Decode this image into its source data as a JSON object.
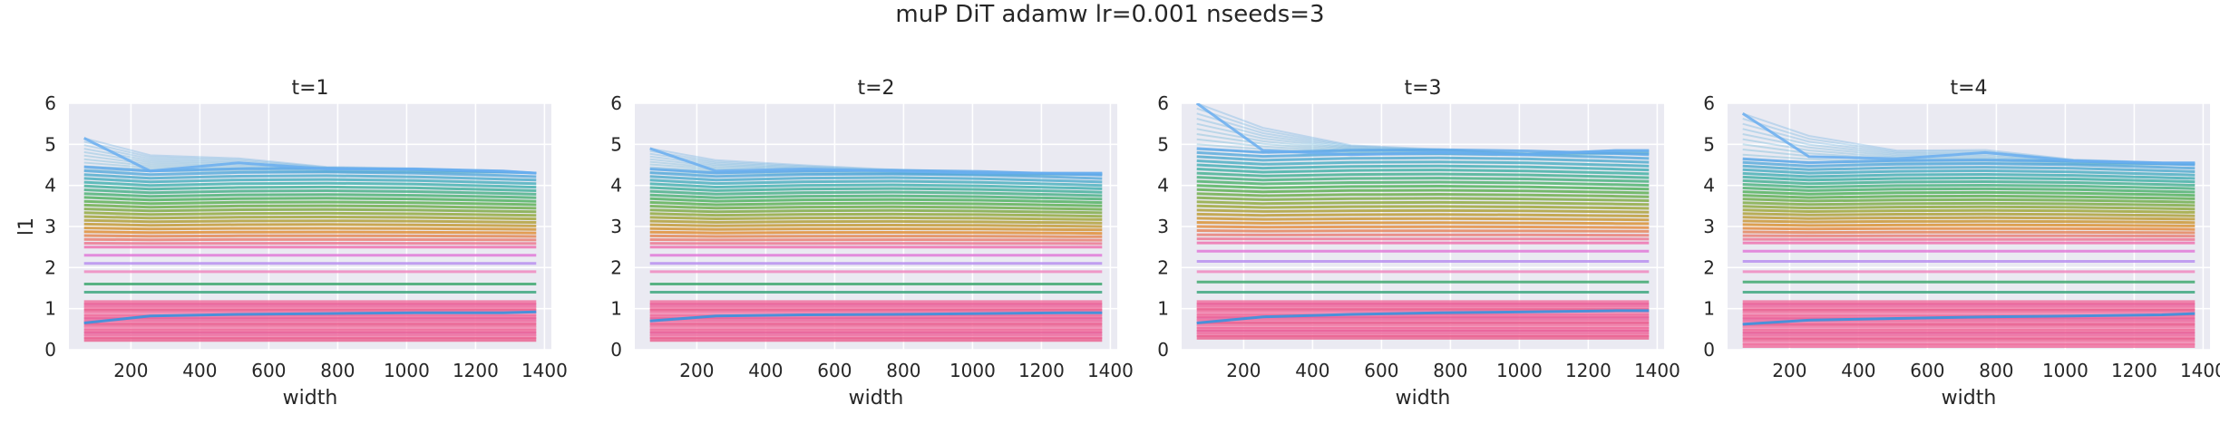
{
  "figure": {
    "suptitle": "muP DiT adamw lr=0.001 nseeds=3"
  },
  "chart_data": {
    "type": "line",
    "background": "#eaeaf2",
    "grid": true,
    "grid_color": "#ffffff",
    "xlabel": "width",
    "ylabel": "l1",
    "xlim": [
      20,
      1420
    ],
    "ylim": [
      0,
      6
    ],
    "xticks": [
      200,
      400,
      600,
      800,
      1000,
      1200,
      1400
    ],
    "yticks": [
      0,
      1,
      2,
      3,
      4,
      5,
      6
    ],
    "x": [
      64,
      256,
      512,
      768,
      1024,
      1280,
      1376
    ],
    "band_palette": [
      "#5aa6e8",
      "#3aaea8",
      "#4caf50",
      "#9aa430",
      "#e08a2a",
      "#f06ab0",
      "#d58df0",
      "#f07a6a",
      "#e8608a"
    ],
    "panels": [
      {
        "title": "t=1",
        "top_line": [
          5.15,
          4.35,
          4.55,
          4.4,
          4.4,
          4.35,
          4.3
        ],
        "upper_band": {
          "top": 4.3,
          "bottom": 2.5,
          "n": 22
        },
        "mid_lines": [
          2.3,
          2.1,
          1.9,
          1.6,
          1.4
        ],
        "lower_band": {
          "top": 1.15,
          "bottom": 0.25,
          "n": 14
        },
        "blue_line": [
          0.65,
          0.82,
          0.86,
          0.88,
          0.9,
          0.9,
          0.92
        ]
      },
      {
        "title": "t=2",
        "top_line": [
          4.9,
          4.35,
          4.4,
          4.35,
          4.3,
          4.3,
          4.3
        ],
        "upper_band": {
          "top": 4.25,
          "bottom": 2.5,
          "n": 22
        },
        "mid_lines": [
          2.3,
          2.1,
          1.9,
          1.6,
          1.4
        ],
        "lower_band": {
          "top": 1.15,
          "bottom": 0.25,
          "n": 14
        },
        "blue_line": [
          0.7,
          0.82,
          0.85,
          0.86,
          0.88,
          0.9,
          0.9
        ]
      },
      {
        "title": "t=3",
        "top_line": [
          6.0,
          4.85,
          4.75,
          4.8,
          4.75,
          4.85,
          4.85
        ],
        "upper_band": {
          "top": 4.75,
          "bottom": 2.6,
          "n": 24
        },
        "mid_lines": [
          2.4,
          2.15,
          1.9,
          1.65,
          1.4
        ],
        "lower_band": {
          "top": 1.15,
          "bottom": 0.3,
          "n": 14
        },
        "blue_line": [
          0.65,
          0.8,
          0.86,
          0.9,
          0.92,
          0.95,
          0.95
        ]
      },
      {
        "title": "t=4",
        "top_line": [
          5.75,
          4.7,
          4.65,
          4.8,
          4.6,
          4.55,
          4.55
        ],
        "upper_band": {
          "top": 4.5,
          "bottom": 2.6,
          "n": 24
        },
        "mid_lines": [
          2.4,
          2.15,
          1.9,
          1.65,
          1.4
        ],
        "lower_band": {
          "top": 1.15,
          "bottom": 0.1,
          "n": 16
        },
        "blue_line": [
          0.62,
          0.72,
          0.76,
          0.8,
          0.82,
          0.85,
          0.88
        ]
      }
    ]
  }
}
